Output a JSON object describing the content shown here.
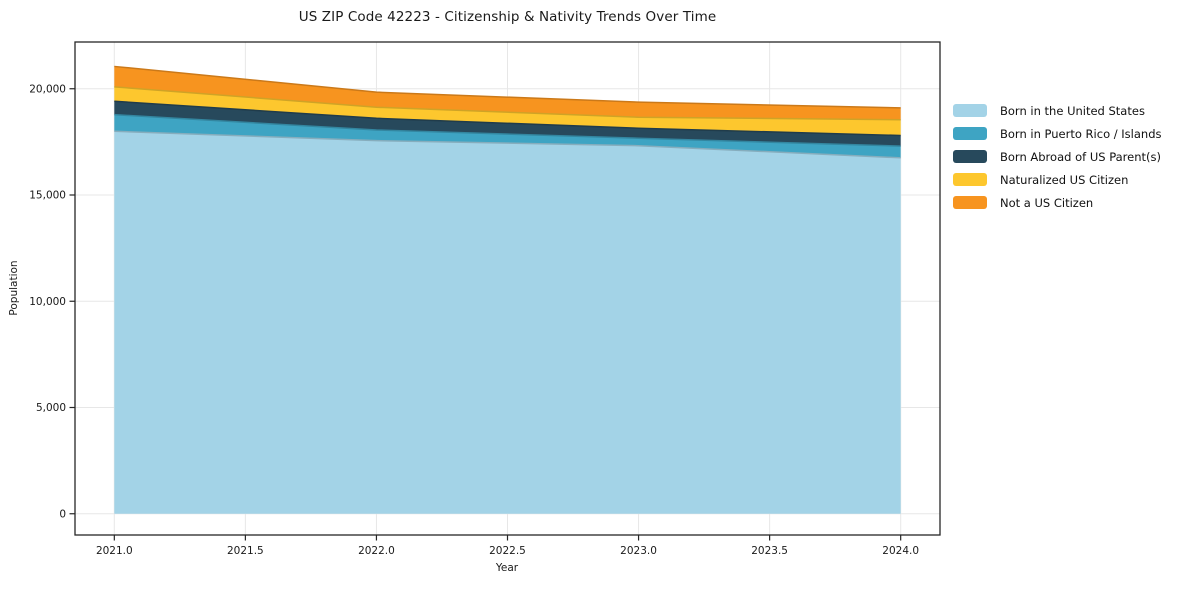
{
  "title": "US ZIP Code 42223 - Citizenship & Nativity Trends Over Time",
  "chart_data": {
    "type": "area",
    "stacked": true,
    "title": "US ZIP Code 42223 - Citizenship & Nativity Trends Over Time",
    "xlabel": "Year",
    "ylabel": "Population",
    "x": [
      2021,
      2022,
      2023,
      2024
    ],
    "series": [
      {
        "name": "Born in the United States",
        "color": "#a3d3e7",
        "values": [
          18000,
          17560,
          17320,
          16750
        ]
      },
      {
        "name": "Born in Puerto Rico / Islands",
        "color": "#3ea4c3",
        "values": [
          780,
          500,
          350,
          550
        ]
      },
      {
        "name": "Born Abroad of US Parent(s)",
        "color": "#27495c",
        "values": [
          630,
          550,
          470,
          500
        ]
      },
      {
        "name": "Naturalized US Citizen",
        "color": "#fdc72e",
        "values": [
          680,
          520,
          520,
          740
        ]
      },
      {
        "name": "Not a US Citizen",
        "color": "#f7941f",
        "values": [
          960,
          710,
          710,
          560
        ]
      }
    ],
    "totals": [
      21050,
      19840,
      19370,
      19100
    ],
    "x_ticks": [
      {
        "v": 2021.0,
        "label": "2021.0"
      },
      {
        "v": 2021.5,
        "label": "2021.5"
      },
      {
        "v": 2022.0,
        "label": "2022.0"
      },
      {
        "v": 2022.5,
        "label": "2022.5"
      },
      {
        "v": 2023.0,
        "label": "2023.0"
      },
      {
        "v": 2023.5,
        "label": "2023.5"
      },
      {
        "v": 2024.0,
        "label": "2024.0"
      }
    ],
    "y_ticks": [
      {
        "v": 0,
        "label": "0"
      },
      {
        "v": 5000,
        "label": "5,000"
      },
      {
        "v": 10000,
        "label": "10,000"
      },
      {
        "v": 15000,
        "label": "15,000"
      },
      {
        "v": 20000,
        "label": "20,000"
      }
    ],
    "xlim": [
      2020.85,
      2024.15
    ],
    "ylim": [
      -1000,
      22200
    ],
    "grid": true,
    "legend_position": "right-of-plot-upper"
  },
  "colors": {
    "background": "#ffffff",
    "grid": "#e7e7e7",
    "spine": "#262626",
    "tick_text": "#1a1a1a"
  }
}
